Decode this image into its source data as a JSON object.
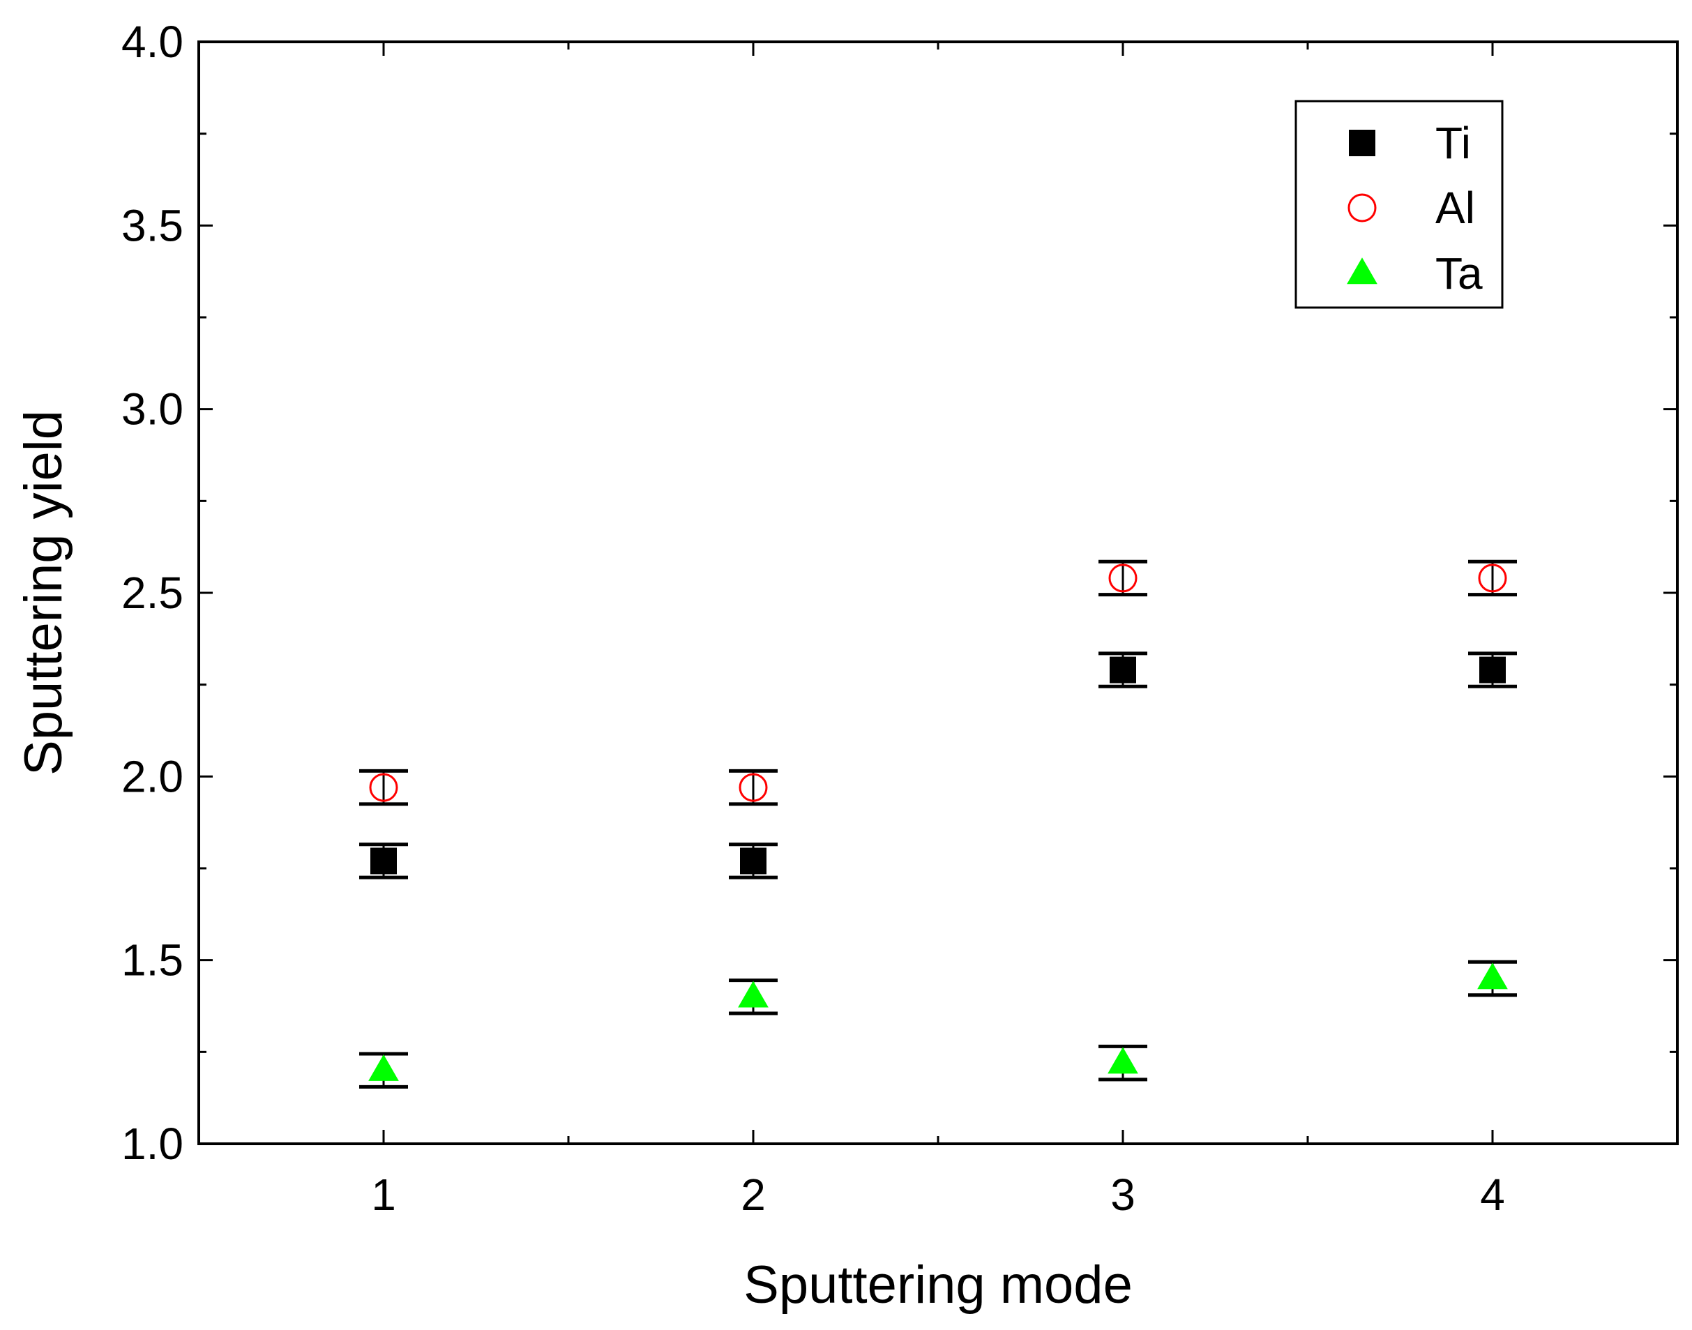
{
  "chart_data": {
    "type": "scatter",
    "title": "",
    "xlabel": "Sputtering mode",
    "ylabel": "Sputtering yield",
    "xlim": [
      0.5,
      4.5
    ],
    "ylim": [
      1.0,
      4.0
    ],
    "x_ticks": [
      "1",
      "2",
      "3",
      "4"
    ],
    "y_ticks": [
      "1.0",
      "1.5",
      "2.0",
      "2.5",
      "3.0",
      "3.5",
      "4.0"
    ],
    "grid": false,
    "legend_position": "top-right",
    "series": [
      {
        "name": "Ti",
        "marker": "square",
        "color": "#000000",
        "x": [
          1,
          2,
          3,
          4
        ],
        "y": [
          1.77,
          1.77,
          2.29,
          2.29
        ],
        "err": [
          0.045,
          0.045,
          0.045,
          0.045
        ]
      },
      {
        "name": "Al",
        "marker": "circle-open",
        "color": "#ff0000",
        "x": [
          1,
          2,
          3,
          4
        ],
        "y": [
          1.97,
          1.97,
          2.54,
          2.54
        ],
        "err": [
          0.045,
          0.045,
          0.045,
          0.045
        ]
      },
      {
        "name": "Ta",
        "marker": "triangle",
        "color": "#00ff00",
        "x": [
          1,
          2,
          3,
          4
        ],
        "y": [
          1.2,
          1.4,
          1.22,
          1.45
        ],
        "err": [
          0.045,
          0.045,
          0.045,
          0.045
        ]
      }
    ]
  }
}
